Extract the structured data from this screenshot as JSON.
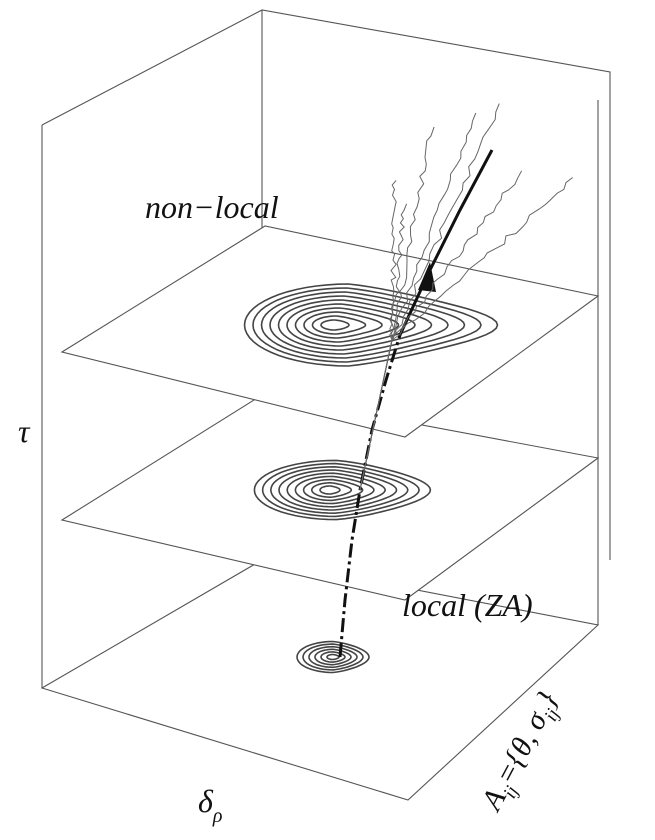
{
  "labels": {
    "upper": "non−local",
    "lower": "local (ZA)",
    "vertical_axis": "τ",
    "depth_axis": {
      "symbol": "δ",
      "subscript": "ρ"
    },
    "right_axis": {
      "parts": [
        "A",
        "ij",
        "={θ, σ",
        "ij",
        "}"
      ]
    }
  }
}
